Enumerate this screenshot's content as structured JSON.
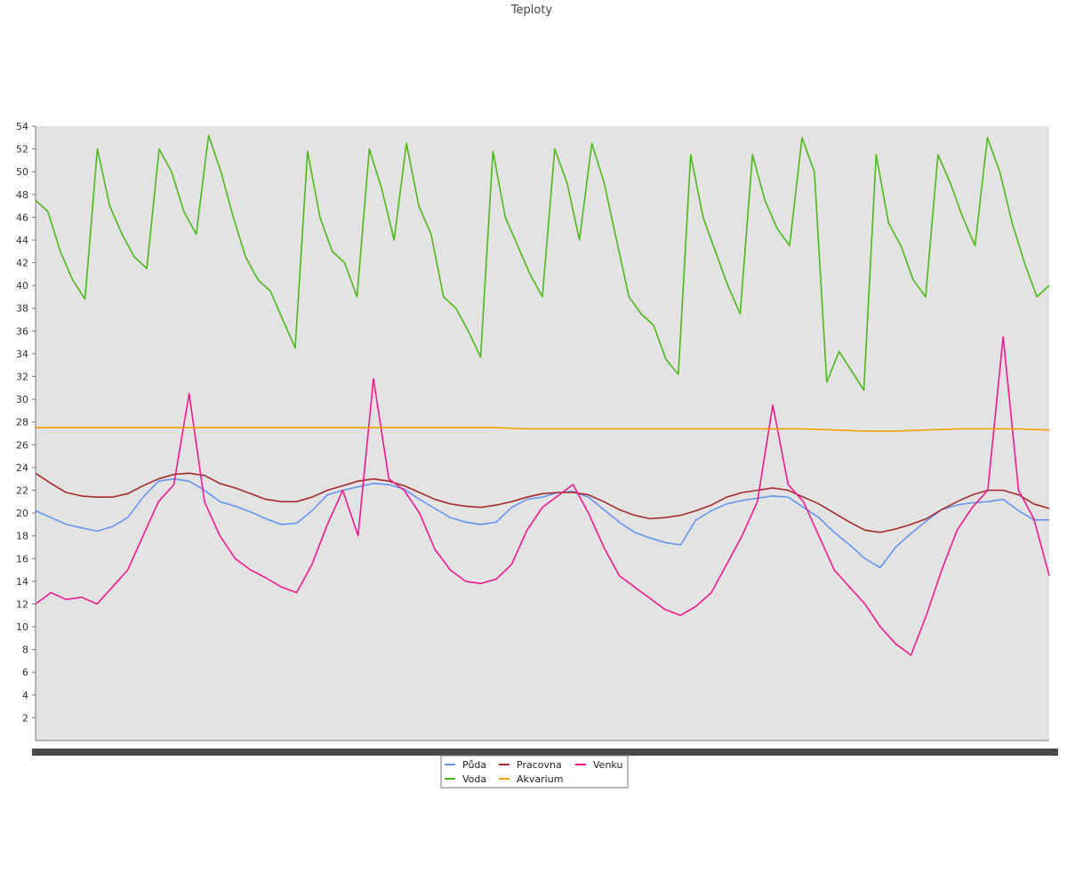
{
  "chart_data": {
    "type": "line",
    "title": "Teploty",
    "xlabel": "",
    "ylabel": "",
    "ylim": [
      0,
      54
    ],
    "yticks": [
      2,
      4,
      6,
      8,
      10,
      12,
      14,
      16,
      18,
      20,
      22,
      24,
      26,
      28,
      30,
      32,
      34,
      36,
      38,
      40,
      42,
      44,
      46,
      48,
      50,
      52,
      54
    ],
    "x_points": 100,
    "grid": false,
    "legend_position": "bottom-center",
    "series": [
      {
        "name": "Půda",
        "color": "#6495ED",
        "values": [
          20.2,
          19.6,
          19.0,
          18.7,
          18.4,
          18.8,
          19.6,
          21.4,
          22.8,
          23.0,
          22.8,
          22.0,
          21.0,
          20.6,
          20.1,
          19.5,
          19.0,
          19.1,
          20.2,
          21.6,
          22.0,
          22.3,
          22.6,
          22.5,
          22.1,
          21.2,
          20.4,
          19.6,
          19.2,
          19.0,
          19.2,
          20.5,
          21.2,
          21.4,
          21.8,
          21.9,
          21.4,
          20.3,
          19.2,
          18.3,
          17.8,
          17.4,
          17.2,
          19.4,
          20.2,
          20.8,
          21.1,
          21.3,
          21.5,
          21.4,
          20.5,
          19.6,
          18.3,
          17.2,
          16.0,
          15.2,
          17.0,
          18.2,
          19.3,
          20.3,
          20.7,
          20.9,
          21.0,
          21.2,
          20.2,
          19.4,
          19.4
        ]
      },
      {
        "name": "Pracovna",
        "color": "#A52A2A",
        "values": [
          23.5,
          22.6,
          21.8,
          21.5,
          21.4,
          21.4,
          21.7,
          22.4,
          23.0,
          23.4,
          23.5,
          23.3,
          22.6,
          22.2,
          21.7,
          21.2,
          21.0,
          21.0,
          21.4,
          22.0,
          22.4,
          22.8,
          23.0,
          22.8,
          22.4,
          21.8,
          21.2,
          20.8,
          20.6,
          20.5,
          20.7,
          21.0,
          21.4,
          21.7,
          21.8,
          21.8,
          21.6,
          21.0,
          20.3,
          19.8,
          19.5,
          19.6,
          19.8,
          20.2,
          20.7,
          21.4,
          21.8,
          22.0,
          22.2,
          22.0,
          21.4,
          20.8,
          20.0,
          19.2,
          18.5,
          18.3,
          18.6,
          19.0,
          19.5,
          20.3,
          21.0,
          21.6,
          22.0,
          22.0,
          21.6,
          20.8,
          20.4
        ]
      },
      {
        "name": "Venku",
        "color": "#EE1A8E",
        "values": [
          12.0,
          13.0,
          12.4,
          12.6,
          12.0,
          13.5,
          15.0,
          18.0,
          21.0,
          22.5,
          30.5,
          21.0,
          18.0,
          16.0,
          15.0,
          14.3,
          13.5,
          13.0,
          15.5,
          19.0,
          22.0,
          18.0,
          31.8,
          23.0,
          22.0,
          20.0,
          16.8,
          15.0,
          14.0,
          13.8,
          14.2,
          15.5,
          18.5,
          20.5,
          21.5,
          22.5,
          20.0,
          17.0,
          14.5,
          13.5,
          12.5,
          11.5,
          11.0,
          11.8,
          13.0,
          15.5,
          18.0,
          21.0,
          29.5,
          22.5,
          21.0,
          18.0,
          15.0,
          13.5,
          12.0,
          10.0,
          8.5,
          7.5,
          11.0,
          15.0,
          18.5,
          20.5,
          22.0,
          35.5,
          22.0,
          19.5,
          14.5
        ]
      },
      {
        "name": "Voda",
        "color": "#4CB81A",
        "values": [
          47.5,
          46.5,
          43.0,
          40.5,
          38.8,
          52.0,
          47.0,
          44.5,
          42.5,
          41.5,
          52.0,
          50.0,
          46.5,
          44.5,
          53.2,
          50.0,
          46.0,
          42.5,
          40.5,
          39.5,
          37.0,
          34.5,
          51.8,
          46.0,
          43.0,
          42.0,
          39.0,
          52.0,
          48.5,
          44.0,
          52.5,
          47.0,
          44.5,
          39.0,
          38.0,
          36.0,
          33.7,
          51.8,
          46.0,
          43.5,
          41.0,
          39.0,
          52.0,
          49.0,
          44.0,
          52.5,
          49.0,
          44.0,
          39.0,
          37.5,
          36.5,
          33.5,
          32.2,
          51.5,
          46.0,
          43.0,
          40.0,
          37.5,
          51.5,
          47.5,
          45.0,
          43.5,
          53.0,
          50.0,
          31.5,
          34.2,
          32.5,
          30.8,
          51.5,
          45.5,
          43.5,
          40.5,
          39.0,
          51.5,
          49.0,
          46.0,
          43.5,
          53.0,
          50.0,
          45.5,
          42.0,
          39.0,
          40.0
        ]
      },
      {
        "name": "Akvarium",
        "color": "#F0A000",
        "values": [
          27.5,
          27.5,
          27.5,
          27.5,
          27.5,
          27.5,
          27.5,
          27.5,
          27.5,
          27.5,
          27.5,
          27.5,
          27.5,
          27.5,
          27.5,
          27.5,
          27.4,
          27.4,
          27.4,
          27.4,
          27.4,
          27.4,
          27.4,
          27.4,
          27.4,
          27.4,
          27.3,
          27.2,
          27.2,
          27.3,
          27.4,
          27.4,
          27.4,
          27.3
        ]
      }
    ],
    "legend": [
      {
        "name": "Půda",
        "color": "#6495ED"
      },
      {
        "name": "Pracovna",
        "color": "#A52A2A"
      },
      {
        "name": "Venku",
        "color": "#EE1A8E"
      },
      {
        "name": "Voda",
        "color": "#4CB81A"
      },
      {
        "name": "Akvarium",
        "color": "#F0A000"
      }
    ]
  },
  "style": {
    "plot_background": "#E3E3E3",
    "axis_color": "#777777"
  }
}
